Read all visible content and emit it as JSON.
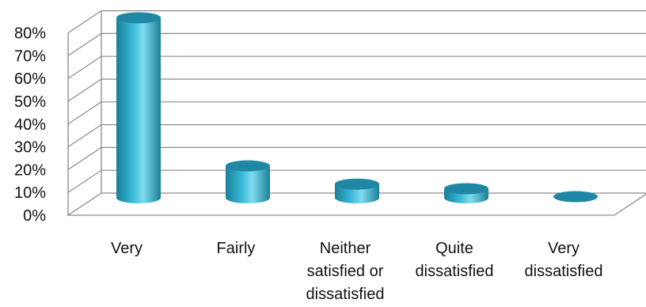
{
  "chart_data": {
    "type": "bar",
    "title": "",
    "xlabel": "",
    "ylabel": "",
    "categories": [
      [
        "Very"
      ],
      [
        "Fairly"
      ],
      [
        "Neither",
        "satisfied or",
        "dissatisfied"
      ],
      [
        "Quite",
        "dissatisfied"
      ],
      [
        "Very",
        "dissatisfied"
      ]
    ],
    "values": [
      79,
      14,
      6,
      4,
      0.5
    ],
    "ylim": [
      0,
      80
    ],
    "yticks": [
      "0%",
      "10%",
      "20%",
      "30%",
      "40%",
      "50%",
      "60%",
      "70%",
      "80%"
    ],
    "grid": true,
    "legend": "none",
    "style": "3d-cylinder"
  },
  "colors": {
    "bar_dark": "#1c7f98",
    "bar_mid": "#35b6d6",
    "bar_light": "#7fdcef",
    "bar_top": "#1f87a3",
    "grid": "#8a8a8a",
    "frame": "#8a8a8a"
  }
}
